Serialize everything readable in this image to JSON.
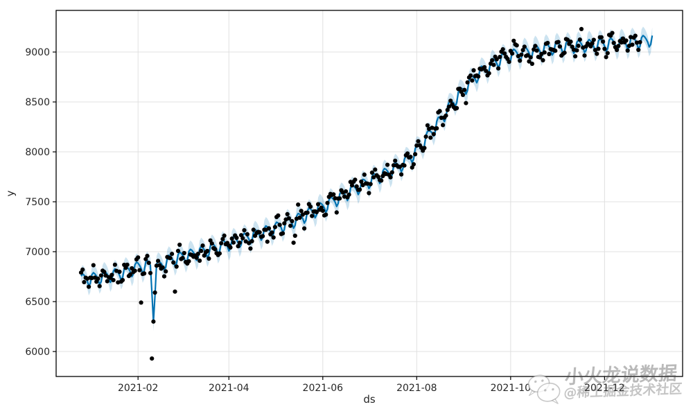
{
  "figure": {
    "background": "#ffffff"
  },
  "chart_data": {
    "type": "line",
    "subtype": "prophet-forecast-with-observations",
    "title": "",
    "xlabel": "ds",
    "ylabel": "y",
    "grid": true,
    "x_axis": {
      "tick_labels": [
        "2021-02",
        "2021-04",
        "2021-06",
        "2021-08",
        "2021-10",
        "2021-12"
      ],
      "tick_days": [
        37,
        96,
        157,
        218,
        279,
        340
      ],
      "day_zero_date": "2020-12-26",
      "xlim_days": [
        -16.2,
        390.7
      ]
    },
    "y_axis": {
      "ticks": [
        6000,
        6500,
        7000,
        7500,
        8000,
        8500,
        9000
      ],
      "ylim": [
        5750,
        9417
      ]
    },
    "series": [
      {
        "name": "observed-points",
        "style": "scatter",
        "color": "#000000",
        "marker_radius": 3.1
      },
      {
        "name": "forecast-yhat",
        "style": "line",
        "color": "#0072B2",
        "width": 2.2
      },
      {
        "name": "uncertainty-band",
        "style": "band",
        "color": "#0072B2",
        "opacity": 0.2,
        "half_width": 70
      }
    ],
    "trend_anchors": [
      [
        0,
        6720
      ],
      [
        8,
        6735
      ],
      [
        16,
        6755
      ],
      [
        24,
        6780
      ],
      [
        30,
        6805
      ],
      [
        37,
        6845
      ],
      [
        42,
        6862
      ],
      [
        45,
        6850
      ],
      [
        47,
        6370
      ],
      [
        49,
        6840
      ],
      [
        56,
        6905
      ],
      [
        65,
        6945
      ],
      [
        80,
        7005
      ],
      [
        96,
        7080
      ],
      [
        110,
        7150
      ],
      [
        126,
        7235
      ],
      [
        140,
        7320
      ],
      [
        157,
        7450
      ],
      [
        172,
        7575
      ],
      [
        187,
        7705
      ],
      [
        200,
        7800
      ],
      [
        210,
        7890
      ],
      [
        218,
        8010
      ],
      [
        226,
        8170
      ],
      [
        234,
        8330
      ],
      [
        242,
        8510
      ],
      [
        250,
        8650
      ],
      [
        258,
        8780
      ],
      [
        266,
        8870
      ],
      [
        272,
        8925
      ],
      [
        279,
        8965
      ],
      [
        288,
        9000
      ],
      [
        295,
        9020
      ],
      [
        310,
        9050
      ],
      [
        325,
        9065
      ],
      [
        340,
        9080
      ],
      [
        355,
        9095
      ],
      [
        365,
        9110
      ],
      [
        371,
        9130
      ]
    ],
    "weekly_pattern": [
      35,
      55,
      40,
      15,
      -20,
      -72,
      -50
    ],
    "weekly_scale_dots": 0.85,
    "weekly_scale_band": 1.35,
    "noise_sigma": 40,
    "noise_seed": 42,
    "outliers": [
      [
        39,
        6490
      ],
      [
        46,
        5930
      ],
      [
        47,
        6300
      ],
      [
        61,
        6600
      ],
      [
        121,
        7100
      ],
      [
        138,
        7090
      ],
      [
        139,
        7160
      ],
      [
        325,
        9230
      ]
    ],
    "dots_end_day": 363,
    "line_end_day": 371
  },
  "watermark": {
    "line1": "小火龙说数据",
    "line2": "@稀土掘金技术社区",
    "icon": "wechat-icon"
  }
}
